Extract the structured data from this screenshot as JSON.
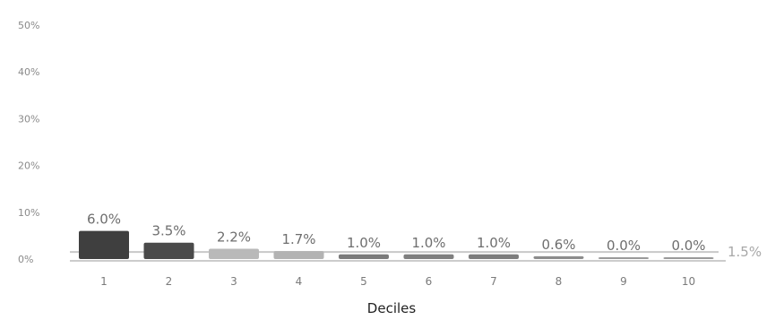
{
  "chart_data": {
    "type": "bar",
    "title": "",
    "xlabel": "Deciles",
    "ylabel": "",
    "categories": [
      "1",
      "2",
      "3",
      "4",
      "5",
      "6",
      "7",
      "8",
      "9",
      "10"
    ],
    "values": [
      6.0,
      3.5,
      2.2,
      1.7,
      1.0,
      1.0,
      1.0,
      0.6,
      0.0,
      0.0
    ],
    "value_labels": [
      "6.0%",
      "3.5%",
      "2.2%",
      "1.7%",
      "1.0%",
      "1.0%",
      "1.0%",
      "0.6%",
      "0.0%",
      "0.0%"
    ],
    "bar_colors": [
      "#3f3f3f",
      "#4a4a4a",
      "#b9b9b9",
      "#b3b3b3",
      "#7a7a7a",
      "#7f7f7f",
      "#7d7d7d",
      "#8c8c8c",
      "#9a9a9a",
      "#9a9a9a"
    ],
    "y_ticks": [
      0,
      10,
      20,
      30,
      40,
      50
    ],
    "y_tick_labels": [
      "0%",
      "10%",
      "20%",
      "30%",
      "40%",
      "50%"
    ],
    "ylim": [
      0,
      50
    ],
    "reference_line": {
      "value": 1.5,
      "label": "1.5%",
      "color": "#c8c8c8"
    },
    "grid": false
  }
}
